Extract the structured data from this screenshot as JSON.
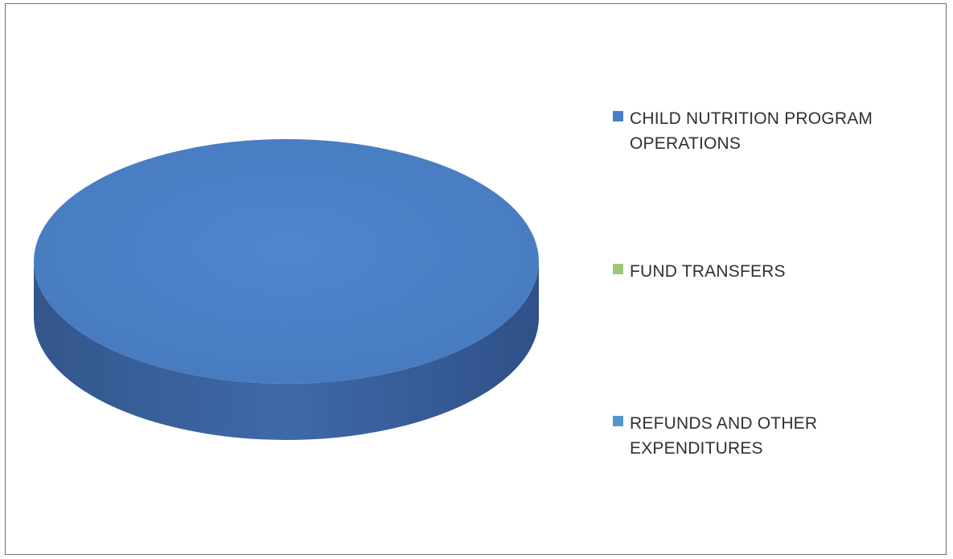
{
  "chart_data": {
    "type": "pie",
    "style": "3d",
    "title": "",
    "legend_position": "right",
    "slices": [
      {
        "label": "CHILD NUTRITION PROGRAM OPERATIONS",
        "value": 100,
        "color": "#4a7ec4"
      },
      {
        "label": "FUND TRANSFERS",
        "value": 0,
        "color": "#9bc77a"
      },
      {
        "label": "REFUNDS AND OTHER EXPENDITURES",
        "value": 0,
        "color": "#4f9ac9"
      }
    ]
  }
}
